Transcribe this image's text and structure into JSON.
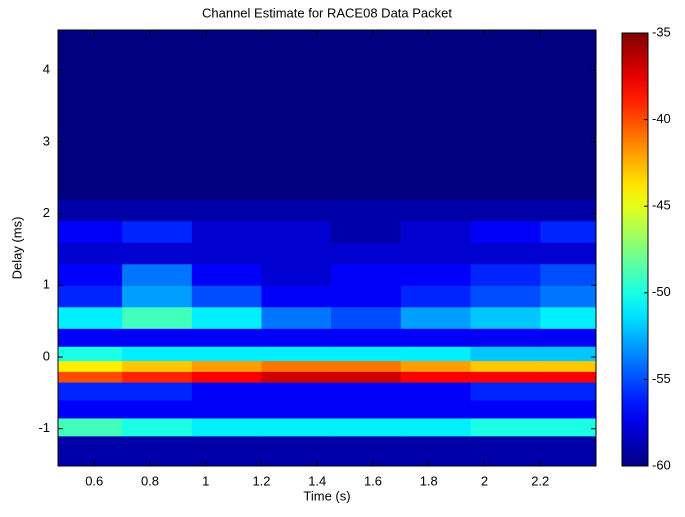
{
  "chart_data": {
    "type": "heatmap",
    "title": "Channel Estimate for RACE08 Data Packet",
    "xlabel": "Time (s)",
    "ylabel": "Delay (ms)",
    "xlim": [
      0.47,
      2.4
    ],
    "ylim": [
      -1.52,
      4.56
    ],
    "xticks": [
      0.6,
      0.8,
      1,
      1.2,
      1.4,
      1.6,
      1.8,
      2,
      2.2
    ],
    "yticks": [
      -1,
      0,
      1,
      2,
      3,
      4
    ],
    "x_edges": [
      0.47,
      0.7,
      0.95,
      1.2,
      1.45,
      1.7,
      1.95,
      2.2,
      2.4
    ],
    "y_edges": [
      -1.52,
      -1.1,
      -0.85,
      -0.6,
      -0.35,
      -0.2,
      -0.05,
      0.15,
      0.4,
      0.7,
      1.0,
      1.3,
      1.6,
      1.9,
      2.2,
      4.56
    ],
    "z": [
      [
        -59,
        -59,
        -59,
        -59,
        -59,
        -59,
        -59,
        -59
      ],
      [
        -49,
        -50,
        -51,
        -51,
        -51,
        -51,
        -50,
        -50
      ],
      [
        -57,
        -57,
        -57,
        -57,
        -57,
        -57,
        -57,
        -57
      ],
      [
        -56,
        -56,
        -57,
        -57,
        -57,
        -57,
        -56,
        -56
      ],
      [
        -40,
        -39,
        -38,
        -37,
        -37,
        -38,
        -38,
        -38
      ],
      [
        -44,
        -43,
        -42,
        -41,
        -41,
        -42,
        -43,
        -43
      ],
      [
        -50,
        -51,
        -51,
        -51,
        -51,
        -51,
        -52,
        -52
      ],
      [
        -57,
        -57,
        -57,
        -57,
        -57,
        -57,
        -57,
        -57
      ],
      [
        -51,
        -49,
        -51,
        -54,
        -55,
        -53,
        -52,
        -51
      ],
      [
        -56,
        -53,
        -55,
        -57,
        -57,
        -56,
        -55,
        -54
      ],
      [
        -57,
        -54,
        -57,
        -58,
        -57,
        -57,
        -56,
        -55
      ],
      [
        -58,
        -58,
        -58,
        -58,
        -58,
        -58,
        -58,
        -58
      ],
      [
        -57,
        -56,
        -58,
        -58,
        -59,
        -58,
        -57,
        -56
      ],
      [
        -59,
        -59,
        -59,
        -59,
        -59,
        -59,
        -59,
        -59
      ],
      [
        -60,
        -60,
        -60,
        -60,
        -60,
        -60,
        -60,
        -60
      ]
    ],
    "colormap": "jet",
    "clim": [
      -60,
      -35
    ],
    "cticks": [
      -60,
      -55,
      -50,
      -45,
      -40,
      -35
    ]
  }
}
